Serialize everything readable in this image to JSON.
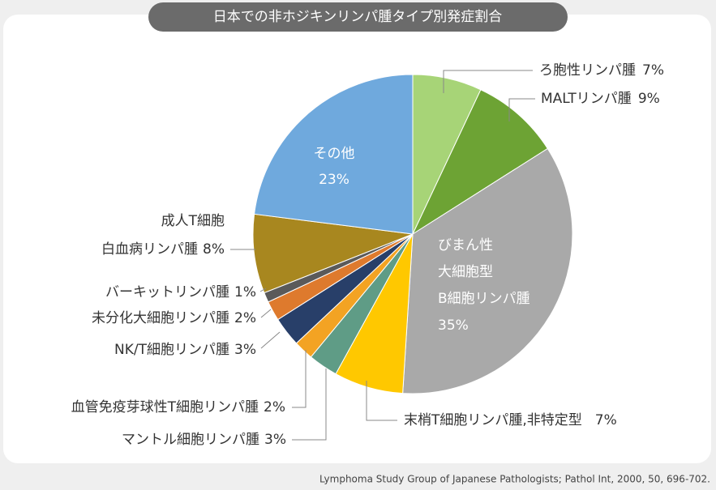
{
  "chart_data": {
    "type": "pie",
    "title": "日本での非ホジキンリンパ腫タイプ別発症割合",
    "categories": [
      "ろ胞性リンパ腫",
      "MALTリンパ腫",
      "びまん性\n大細胞型\nB細胞リンパ腫",
      "末梢T細胞リンパ腫,非特定型",
      "マントル細胞リンパ腫",
      "血管免疫芽球性T細胞リンパ腫",
      "NK/T細胞リンパ腫",
      "未分化大細胞リンパ腫",
      "バーキットリンパ腫",
      "成人T細胞\n白血病リンパ腫",
      "その他"
    ],
    "values": [
      7,
      9,
      35,
      7,
      3,
      2,
      3,
      2,
      1,
      8,
      23
    ],
    "value_labels": [
      "7%",
      "9%",
      "35%",
      "7%",
      "3%",
      "2%",
      "3%",
      "2%",
      "1%",
      "8%",
      "23%"
    ],
    "colors": [
      "#a7d477",
      "#6da334",
      "#a9a9a9",
      "#ffc800",
      "#5f9c86",
      "#f3a323",
      "#283f69",
      "#de7a2d",
      "#5a5a5a",
      "#a8871f",
      "#6fa9dd"
    ],
    "source": "Lymphoma Study Group of Japanese Pathologists; Pathol Int, 2000, 50, 696-702."
  }
}
